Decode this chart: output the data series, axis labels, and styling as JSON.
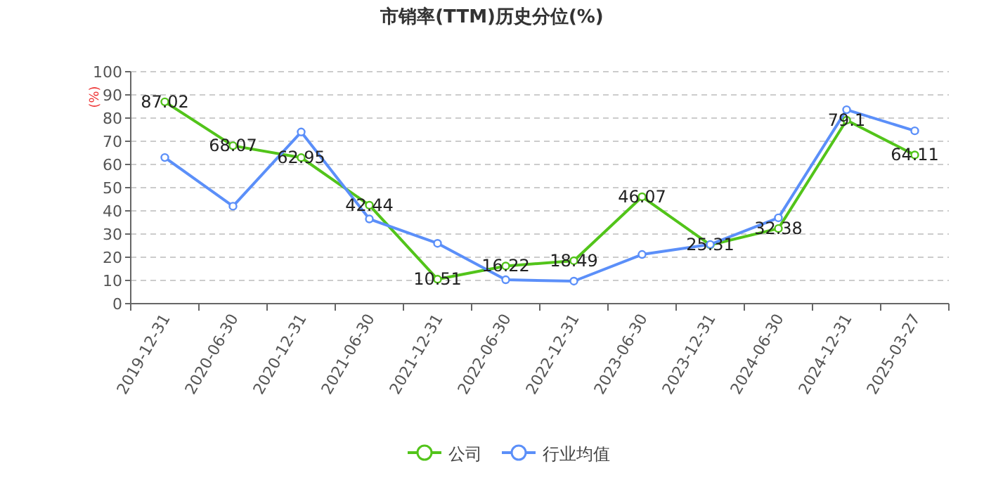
{
  "chart_data": {
    "type": "line",
    "title": "市销率(TTM)历史分位(%)",
    "ylabel": "(%)",
    "categories": [
      "2019-12-31",
      "2020-06-30",
      "2020-12-31",
      "2021-06-30",
      "2021-12-31",
      "2022-06-30",
      "2022-12-31",
      "2023-06-30",
      "2023-12-31",
      "2024-06-30",
      "2024-12-31",
      "2025-03-27"
    ],
    "series": [
      {
        "name": "公司",
        "color": "#52c41a",
        "values": [
          87.02,
          68.07,
          62.95,
          42.44,
          10.51,
          16.22,
          18.49,
          46.07,
          25.31,
          32.38,
          79.1,
          64.11
        ],
        "value_labels": [
          "87.02",
          "68.07",
          "62.95",
          "42.44",
          "10.51",
          "16.22",
          "18.49",
          "46.07",
          "25.31",
          "32.38",
          "79.1",
          "64.11"
        ]
      },
      {
        "name": "行业均值",
        "color": "#5b8ff9",
        "values": [
          63,
          42,
          74,
          36.5,
          26,
          10.3,
          9.7,
          21.2,
          25.5,
          37,
          83.6,
          74.5
        ]
      }
    ],
    "ylim": [
      0,
      100
    ],
    "yticks": [
      0,
      10,
      20,
      30,
      40,
      50,
      60,
      70,
      80,
      90,
      100
    ],
    "grid": "y",
    "legend": "bottom",
    "marker": "circle",
    "line_style": "solid"
  }
}
